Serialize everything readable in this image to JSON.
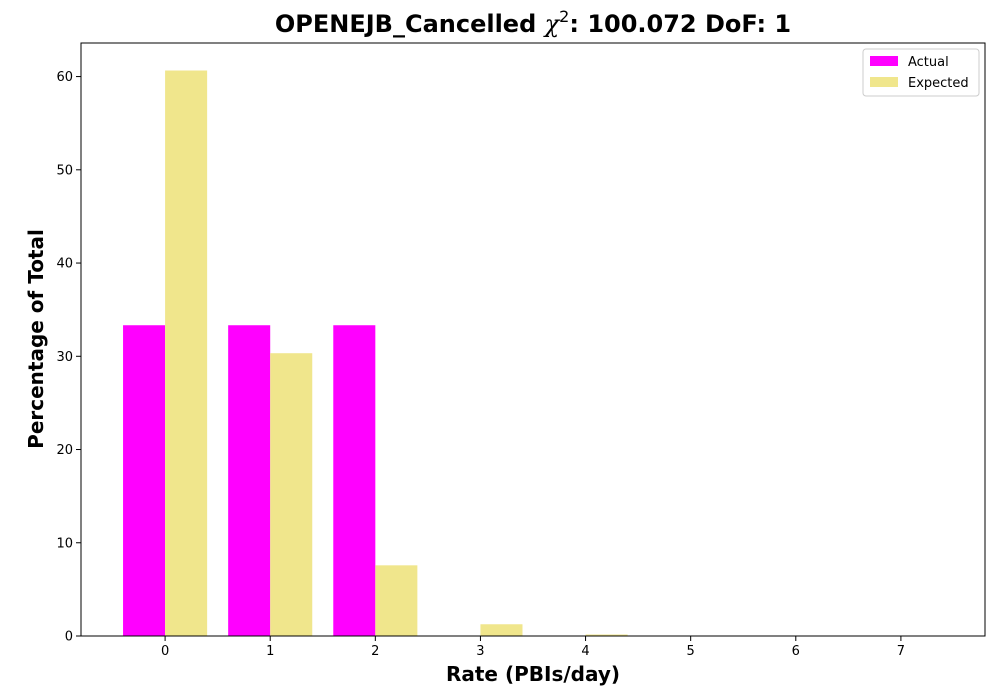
{
  "chart_data": {
    "type": "bar",
    "title": {
      "prefix": "OPENEJB_Cancelled ",
      "symbol": "χ",
      "superscript": "2",
      "suffix": ": 100.072 DoF: 1"
    },
    "xlabel": "Rate (PBIs/day)",
    "ylabel": "Percentage of Total",
    "x": [
      0,
      1,
      2,
      3,
      4,
      5,
      6,
      7
    ],
    "xlim": [
      -0.8,
      7.8
    ],
    "ylim": [
      0,
      63.6
    ],
    "yticks": [
      0,
      10,
      20,
      30,
      40,
      50,
      60
    ],
    "grid": false,
    "legend_position": "top-right",
    "series": [
      {
        "name": "Actual",
        "color": "#ff00ff",
        "values": [
          33.33,
          33.33,
          33.33,
          0,
          0,
          0,
          0,
          0
        ]
      },
      {
        "name": "Expected",
        "color": "#f0e68c",
        "values": [
          60.65,
          30.33,
          7.58,
          1.26,
          0.16,
          0.02,
          0.0,
          0.0
        ]
      }
    ]
  }
}
